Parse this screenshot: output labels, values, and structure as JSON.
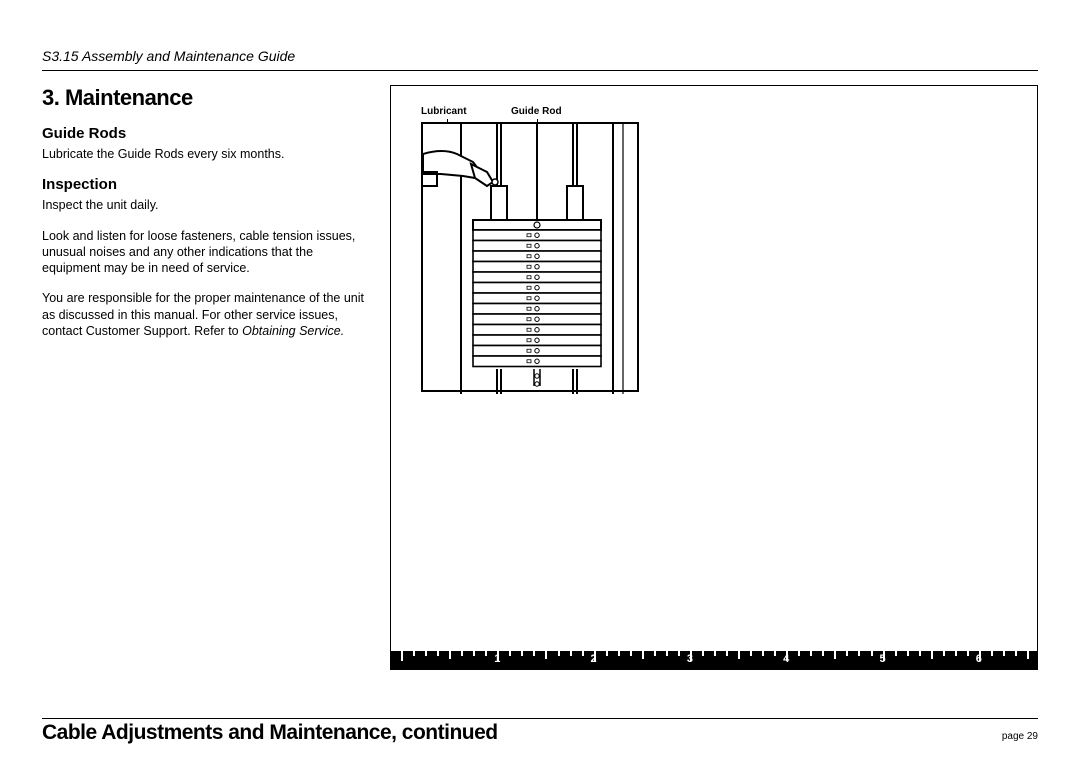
{
  "header": {
    "doc_title": "S3.15 Assembly and Maintenance Guide"
  },
  "section": {
    "title": "3. Maintenance",
    "sub1_title": "Guide Rods",
    "sub1_body": "Lubricate the Guide Rods every six months.",
    "sub2_title": "Inspection",
    "sub2_p1": "Inspect the unit daily.",
    "sub2_p2": "Look and listen for loose fasteners, cable tension issues, unusual noises and any other indications that the equipment may be in need of service.",
    "sub2_p3a": "You are responsible for the proper maintenance of the unit as discussed in this manual. For other service issues, contact Customer Support. Refer to ",
    "sub2_p3b_italic": "Obtaining Service."
  },
  "figure": {
    "label_lubricant": "Lubricant",
    "label_guide_rod": "Guide Rod",
    "weight_plate_count": 13,
    "colors": {
      "stroke": "#000000",
      "fill_bg": "#ffffff",
      "fill_light": "#ffffff"
    }
  },
  "ruler": {
    "numbers": [
      1,
      2,
      3,
      4,
      5,
      6
    ],
    "major_tick_height": 10,
    "minor_tick_height": 6,
    "subdivisions": 8,
    "color_bg": "#000000",
    "color_fg": "#ffffff"
  },
  "footer": {
    "title": "Cable Adjustments and Maintenance, continued",
    "page_label": "page 29"
  }
}
